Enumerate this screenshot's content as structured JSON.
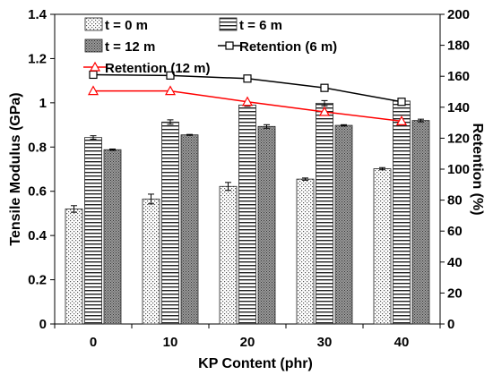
{
  "chart_data": {
    "type": "bar",
    "xlabel": "KP Content (phr)",
    "ylabel": "Tensile Modulus (GPa)",
    "y2label": "Retention (%)",
    "categories": [
      "0",
      "10",
      "20",
      "30",
      "40"
    ],
    "ylim": [
      0,
      1.4
    ],
    "yticks": [
      "0",
      "0.2",
      "0.4",
      "0.6",
      "0.8",
      "1",
      "1.2",
      "1.4"
    ],
    "y2lim": [
      0,
      200
    ],
    "y2ticks": [
      "0",
      "20",
      "40",
      "60",
      "80",
      "100",
      "120",
      "140",
      "160",
      "180",
      "200"
    ],
    "series": [
      {
        "name": "t = 0 m",
        "kind": "bar",
        "axis": "left",
        "pattern": "dots",
        "values": [
          0.52,
          0.565,
          0.622,
          0.655,
          0.702
        ],
        "errors": [
          0.015,
          0.022,
          0.018,
          0.005,
          0.005
        ]
      },
      {
        "name": "t = 6 m",
        "kind": "bar",
        "axis": "left",
        "pattern": "hlines",
        "values": [
          0.843,
          0.913,
          0.99,
          0.998,
          1.008
        ],
        "errors": [
          0.008,
          0.01,
          0.006,
          0.012,
          0.008
        ]
      },
      {
        "name": "t = 12 m",
        "kind": "bar",
        "axis": "left",
        "pattern": "crosshatch",
        "values": [
          0.788,
          0.855,
          0.893,
          0.898,
          0.92
        ],
        "errors": [
          0.003,
          0.002,
          0.008,
          0.003,
          0.006
        ]
      },
      {
        "name": "Retention (6 m)",
        "kind": "line",
        "axis": "right",
        "marker": "square",
        "color": "#000000",
        "values": [
          161,
          160.5,
          158.5,
          152.5,
          143.5
        ]
      },
      {
        "name": "Retention (12 m)",
        "kind": "line",
        "axis": "right",
        "marker": "triangle",
        "color": "#ff0000",
        "values": [
          150.5,
          150.5,
          143.5,
          137,
          131
        ]
      }
    ],
    "legend": [
      {
        "label": "t = 0 m",
        "swatch": "dots"
      },
      {
        "label": "t = 6 m",
        "swatch": "hlines"
      },
      {
        "label": "t = 12 m",
        "swatch": "crosshatch"
      },
      {
        "label": "Retention (6 m)",
        "swatch": "square"
      },
      {
        "label": "Retention (12 m)",
        "swatch": "triangle"
      }
    ]
  }
}
